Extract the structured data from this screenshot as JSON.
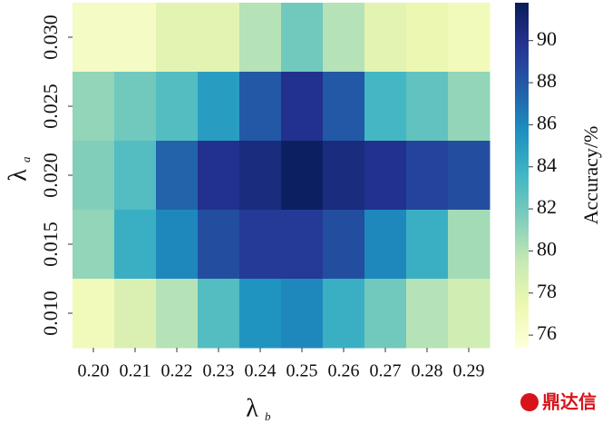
{
  "chart_data": {
    "type": "heatmap",
    "x_categories": [
      "0.20",
      "0.21",
      "0.22",
      "0.23",
      "0.24",
      "0.25",
      "0.26",
      "0.27",
      "0.28",
      "0.29"
    ],
    "y_categories": [
      "0.030",
      "0.025",
      "0.020",
      "0.015",
      "0.010"
    ],
    "values": [
      [
        76.5,
        76.5,
        78,
        78,
        80,
        82,
        80,
        78,
        77.5,
        77
      ],
      [
        81,
        82,
        83,
        85,
        88,
        90,
        88,
        83.5,
        82.5,
        81
      ],
      [
        81.5,
        83,
        87.5,
        90,
        90.5,
        91.5,
        90.5,
        90,
        89,
        88.5
      ],
      [
        81,
        84,
        86,
        88.5,
        89.5,
        89.5,
        88.5,
        86,
        84,
        80.5
      ],
      [
        77,
        78.5,
        80,
        83,
        85.5,
        86,
        84,
        82,
        80,
        79
      ]
    ],
    "xlabel": {
      "symbol": "λ",
      "subscript": "b"
    },
    "ylabel": {
      "symbol": "λ",
      "subscript": "a"
    },
    "colormap": "YlGnBu",
    "clim": [
      75.4,
      91.8
    ],
    "colorbar_ticks": [
      76,
      78,
      80,
      82,
      84,
      86,
      88,
      90
    ],
    "colorbar_label": "Accuracy/%",
    "watermark": "鼎达信"
  }
}
